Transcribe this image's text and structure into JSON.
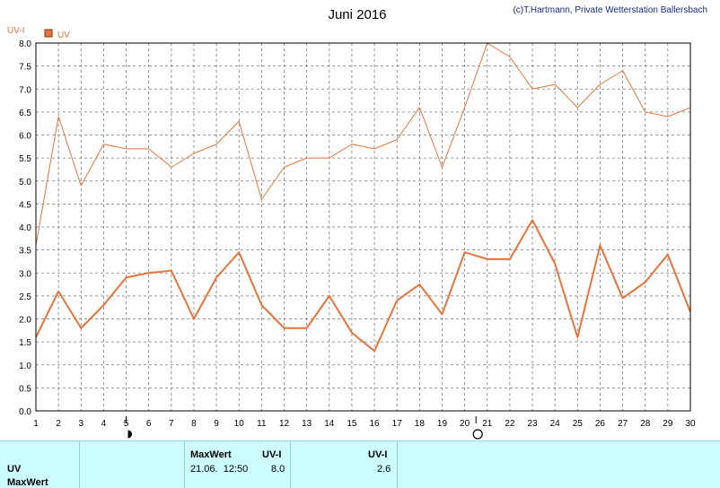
{
  "header": {
    "title": "Juni 2016",
    "copyright": "(c)T.Hartmann, Private Wetterstation Ballersbach"
  },
  "colors": {
    "series": "#e8743b",
    "grid": "#7a7a7a",
    "footer_bg": "#ccfcff"
  },
  "moon_icons": [
    {
      "name": "new-moon-icon",
      "day": 5
    },
    {
      "name": "full-moon-icon",
      "day": 20.5
    }
  ],
  "chart_data": {
    "type": "line",
    "unit_label": "UV-I",
    "legend": "UV",
    "x": [
      1,
      2,
      3,
      4,
      5,
      6,
      7,
      8,
      9,
      10,
      11,
      12,
      13,
      14,
      15,
      16,
      17,
      18,
      19,
      20,
      21,
      22,
      23,
      24,
      25,
      26,
      27,
      28,
      29,
      30
    ],
    "xlim": [
      1,
      30
    ],
    "ylim": [
      0,
      8
    ],
    "yticks": [
      "0.0",
      "0.5",
      "1.0",
      "1.5",
      "2.0",
      "2.5",
      "3.0",
      "3.5",
      "4.0",
      "4.5",
      "5.0",
      "5.5",
      "6.0",
      "6.5",
      "7.0",
      "7.5",
      "8.0"
    ],
    "grid": true,
    "series": [
      {
        "role": "daily-max",
        "values": [
          3.6,
          6.4,
          4.9,
          5.8,
          5.7,
          5.7,
          5.3,
          5.6,
          5.8,
          6.3,
          4.6,
          5.3,
          5.5,
          5.5,
          5.8,
          5.7,
          5.9,
          6.6,
          5.3,
          6.6,
          8.0,
          7.7,
          7.0,
          7.1,
          6.6,
          7.1,
          7.4,
          6.5,
          6.4,
          6.6
        ]
      },
      {
        "role": "daily-mean",
        "values": [
          1.6,
          2.6,
          1.8,
          2.3,
          2.9,
          3.0,
          3.05,
          2.0,
          2.9,
          3.45,
          2.3,
          1.8,
          1.8,
          2.5,
          1.7,
          1.3,
          2.4,
          2.75,
          2.1,
          3.45,
          3.3,
          3.3,
          4.15,
          3.2,
          1.6,
          3.6,
          2.45,
          2.8,
          3.4,
          2.15
        ]
      }
    ]
  },
  "footer": {
    "row_labels": [
      "UV",
      "MaxWert"
    ],
    "max_header": "MaxWert",
    "unit_header_1": "UV-I",
    "max_datetime": "21.06.  12:50",
    "max_value": "8.0",
    "unit_header_2": "UV-I",
    "avg_value": "2.6"
  }
}
